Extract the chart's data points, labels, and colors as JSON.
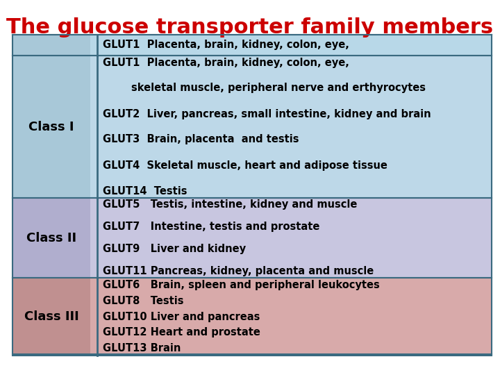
{
  "title": "The glucose transporter family members",
  "title_color": "#CC0000",
  "title_fontsize": 22,
  "bg_color": "#FFFFFF",
  "header_row": {
    "left_bg": "#A8C8D8",
    "right_bg": "#B8D8E8",
    "line": "GLUT1  Placenta, brain, kidney, colon, eye,"
  },
  "classes": [
    {
      "label": "Class I",
      "label_bg": "#A8C8D8",
      "content_bg": "#BDD8E8",
      "lines": [
        [
          "GLUT1",
          "  Placenta, brain, kidney, colon, eye,"
        ],
        [
          "",
          "        skeletal muscle, peripheral nerve and erthyrocytes"
        ],
        [
          "GLUT2",
          "  Liver, pancreas, small intestine, kidney and brain"
        ],
        [
          "GLUT3",
          "  Brain, placenta  and testis"
        ],
        [
          "GLUT4",
          "  Skeletal muscle, heart and adipose tissue"
        ],
        [
          "GLUT14",
          "  Testis"
        ]
      ]
    },
    {
      "label": "Class II",
      "label_bg": "#B0AECE",
      "content_bg": "#C8C6E0",
      "lines": [
        [
          "GLUT5",
          "   Testis, intestine, kidney and muscle"
        ],
        [
          "GLUT7",
          "   Intestine, testis and prostate"
        ],
        [
          "GLUT9",
          "   Liver and kidney"
        ],
        [
          "GLUT11",
          " Pancreas, kidney, placenta and muscle"
        ]
      ]
    },
    {
      "label": "Class III",
      "label_bg": "#C09090",
      "content_bg": "#D8AAAA",
      "lines": [
        [
          "GLUT6",
          "   Brain, spleen and peripheral leukocytes"
        ],
        [
          "GLUT8",
          "   Testis"
        ],
        [
          "GLUT10",
          " Liver and pancreas"
        ],
        [
          "GLUT12",
          " Heart and prostate"
        ],
        [
          "GLUT13",
          " Brain"
        ]
      ]
    }
  ],
  "divider_color": "#3A6A80",
  "text_color": "#000000",
  "content_fontsize": 10.5,
  "label_fontsize": 13
}
